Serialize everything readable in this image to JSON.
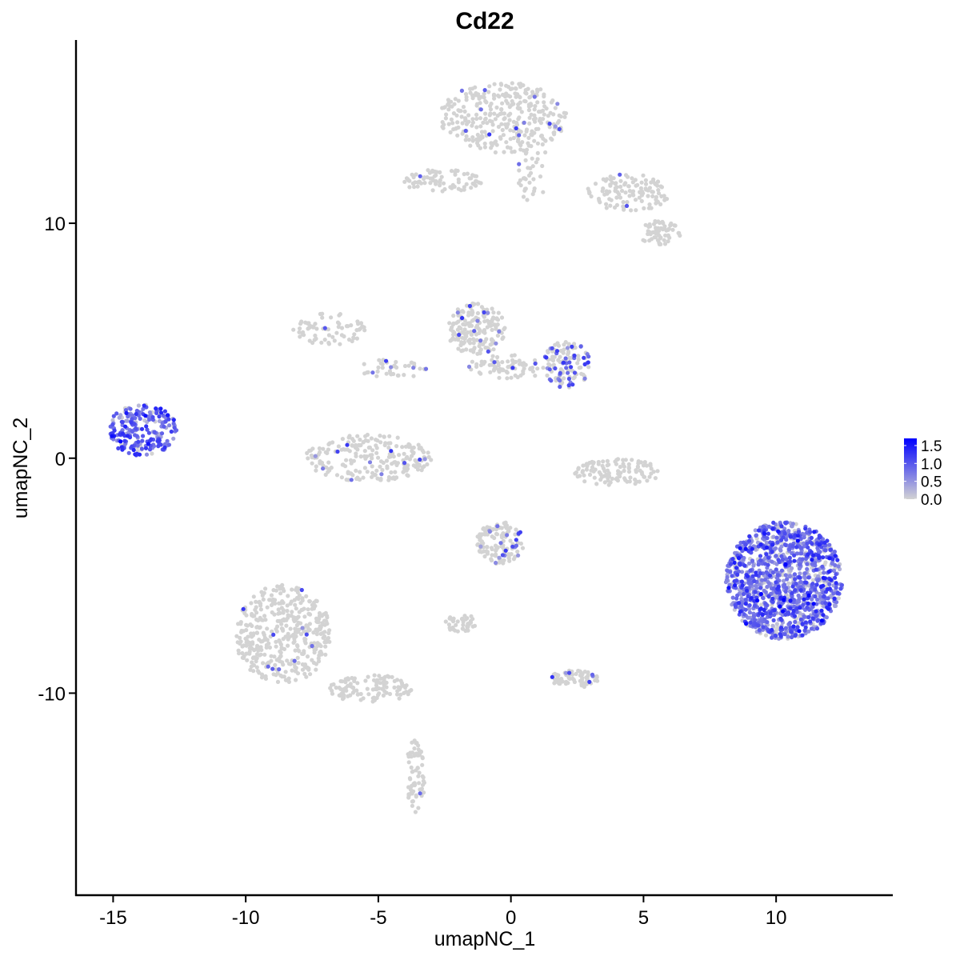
{
  "chart_data": {
    "type": "scatter",
    "title": "Cd22",
    "xlabel": "umapNC_1",
    "ylabel": "umapNC_2",
    "xlim": [
      -16.4,
      14.4
    ],
    "ylim": [
      -18.6,
      17.8
    ],
    "xticks": [
      -15,
      -10,
      -5,
      0,
      5,
      10
    ],
    "xtick_labels": [
      "-15",
      "-10",
      "-5",
      "0",
      "5",
      "10"
    ],
    "yticks": [
      -10,
      0,
      10
    ],
    "ytick_labels": [
      "-10",
      "0",
      "10"
    ],
    "grid": false,
    "legend": {
      "placement": "right",
      "type": "colorbar",
      "min": 0.0,
      "max": 1.7,
      "ticks": [
        0.0,
        0.5,
        1.0,
        1.5
      ],
      "tick_labels": [
        "0.0",
        "0.5",
        "1.0",
        "1.5"
      ]
    },
    "color_low": "#d3d3d3",
    "color_high": "#0000ff",
    "clusters": [
      {
        "name": "top-right-arm",
        "cx": -0.3,
        "cy": 14.5,
        "rx": 2.4,
        "ry": 1.5,
        "n": 320,
        "expr_mean": 0.02
      },
      {
        "name": "top-stem",
        "cx": 0.8,
        "cy": 12.3,
        "rx": 0.6,
        "ry": 1.4,
        "n": 40,
        "expr_mean": 0.02
      },
      {
        "name": "top-left-arm",
        "cx": -2.6,
        "cy": 11.8,
        "rx": 1.5,
        "ry": 0.5,
        "n": 80,
        "expr_mean": 0.03
      },
      {
        "name": "top-right-tail",
        "cx": 4.4,
        "cy": 11.3,
        "rx": 1.6,
        "ry": 0.8,
        "n": 120,
        "expr_mean": 0.02
      },
      {
        "name": "top-right-tip",
        "cx": 5.6,
        "cy": 9.6,
        "rx": 0.8,
        "ry": 0.5,
        "n": 60,
        "expr_mean": 0.0
      },
      {
        "name": "mid-upper",
        "cx": -1.3,
        "cy": 5.5,
        "rx": 1.1,
        "ry": 1.1,
        "n": 180,
        "expr_mean": 0.03
      },
      {
        "name": "mid-right-blob",
        "cx": 2.1,
        "cy": 4.0,
        "rx": 0.9,
        "ry": 1.0,
        "n": 120,
        "expr_mean": 0.15
      },
      {
        "name": "mid-connector",
        "cx": 0.0,
        "cy": 3.9,
        "rx": 1.6,
        "ry": 0.5,
        "n": 80,
        "expr_mean": 0.02
      },
      {
        "name": "mid-left-spray",
        "cx": -6.8,
        "cy": 5.5,
        "rx": 1.5,
        "ry": 0.7,
        "n": 70,
        "expr_mean": 0.02
      },
      {
        "name": "mid-left-line",
        "cx": -4.5,
        "cy": 3.8,
        "rx": 1.3,
        "ry": 0.4,
        "n": 40,
        "expr_mean": 0.02
      },
      {
        "name": "mid-lower-curve",
        "cx": -5.4,
        "cy": 0.0,
        "rx": 2.4,
        "ry": 1.0,
        "n": 220,
        "expr_mean": 0.02
      },
      {
        "name": "mid-lower-right",
        "cx": 4.0,
        "cy": -0.6,
        "rx": 1.6,
        "ry": 0.6,
        "n": 110,
        "expr_mean": 0.0
      },
      {
        "name": "left-bcell",
        "cx": -13.9,
        "cy": 1.2,
        "rx": 1.3,
        "ry": 1.1,
        "n": 230,
        "expr_mean": 0.85
      },
      {
        "name": "right-bcell",
        "cx": 10.3,
        "cy": -5.2,
        "rx": 2.2,
        "ry": 2.5,
        "n": 1250,
        "expr_mean": 0.75
      },
      {
        "name": "center-lower",
        "cx": -0.4,
        "cy": -3.6,
        "rx": 0.9,
        "ry": 0.9,
        "n": 130,
        "expr_mean": 0.05
      },
      {
        "name": "center-lower-tail",
        "cx": -1.9,
        "cy": -7.0,
        "rx": 0.6,
        "ry": 0.4,
        "n": 40,
        "expr_mean": 0.0
      },
      {
        "name": "bottom-left-cloud",
        "cx": -8.6,
        "cy": -7.5,
        "rx": 1.8,
        "ry": 2.1,
        "n": 420,
        "expr_mean": 0.01
      },
      {
        "name": "bottom-left-tail",
        "cx": -5.3,
        "cy": -9.8,
        "rx": 1.6,
        "ry": 0.6,
        "n": 110,
        "expr_mean": 0.0
      },
      {
        "name": "bottom-right-small",
        "cx": 2.4,
        "cy": -9.4,
        "rx": 0.9,
        "ry": 0.4,
        "n": 70,
        "expr_mean": 0.03
      },
      {
        "name": "bottom-vertical",
        "cx": -3.6,
        "cy": -13.5,
        "rx": 0.35,
        "ry": 1.6,
        "n": 70,
        "expr_mean": 0.01
      }
    ]
  }
}
